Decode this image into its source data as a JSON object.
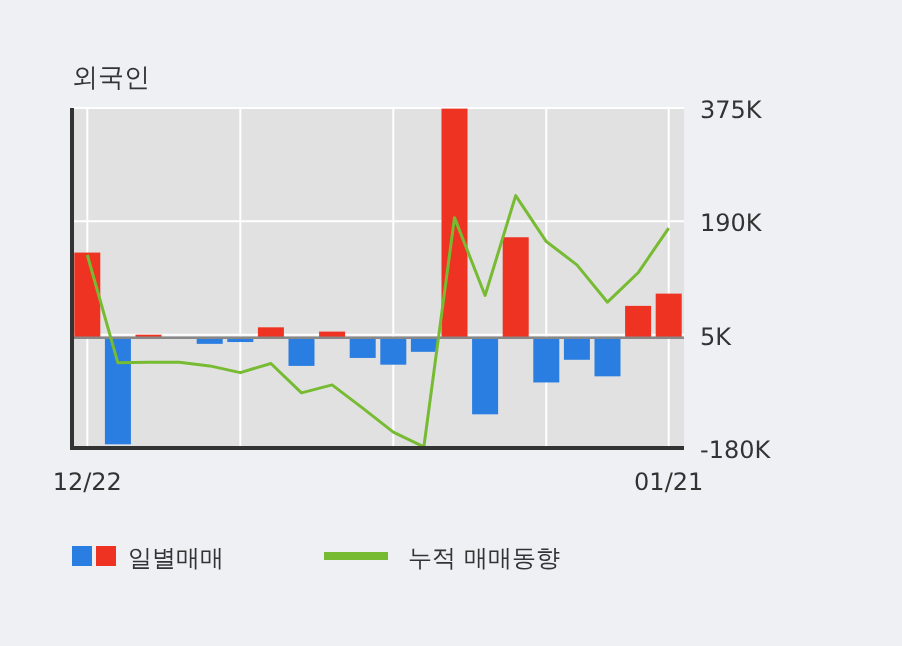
{
  "chart_data": {
    "type": "bar",
    "title": "외국인",
    "categories": [
      "12/22",
      null,
      null,
      null,
      null,
      null,
      null,
      null,
      null,
      null,
      null,
      null,
      null,
      null,
      null,
      null,
      null,
      null,
      null,
      "01/21"
    ],
    "series": [
      {
        "name": "일별매매",
        "colors": [
          "#ee3322",
          "#2a7de1",
          "#ee3322",
          "#ee3322",
          "#2a7de1",
          "#2a7de1",
          "#ee3322",
          "#2a7de1",
          "#ee3322",
          "#2a7de1",
          "#2a7de1",
          "#2a7de1",
          "#ee3322",
          "#2a7de1",
          "#ee3322",
          "#2a7de1",
          "#2a7de1",
          "#2a7de1",
          "#ee3322",
          "#ee3322"
        ],
        "values": [
          139000,
          -174000,
          5000,
          0,
          -10000,
          -7000,
          17000,
          -46000,
          10000,
          -33000,
          -44000,
          -23000,
          374000,
          -125000,
          164000,
          -73000,
          -36000,
          -63000,
          52000,
          72000
        ]
      },
      {
        "name": "누적 매매동향",
        "type": "line",
        "color": "#77bb33",
        "values": [
          135000,
          -41000,
          -40000,
          -40000,
          -46000,
          -57000,
          -42000,
          -90000,
          -77000,
          -115000,
          -154000,
          -178000,
          196000,
          69000,
          232000,
          157000,
          119000,
          58000,
          106000,
          179000
        ]
      }
    ],
    "ylim": [
      -180000,
      375000
    ],
    "yticks": [
      {
        "value": 375000,
        "label": "375K"
      },
      {
        "value": 190000,
        "label": "190K"
      },
      {
        "value": 5000,
        "label": "5K"
      },
      {
        "value": -180000,
        "label": "-180K"
      }
    ],
    "grid": true,
    "legend": "bottom"
  }
}
